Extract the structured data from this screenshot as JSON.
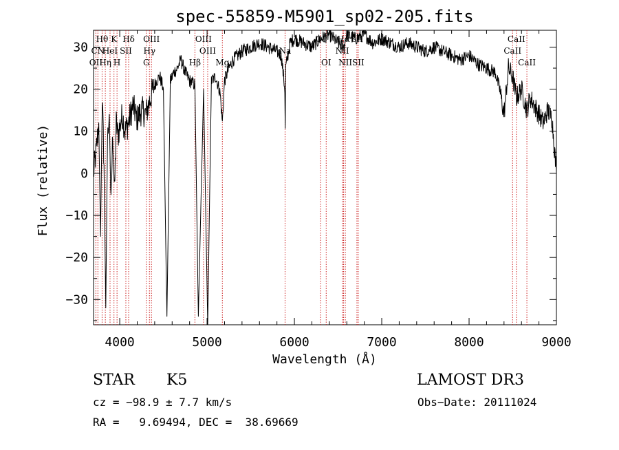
{
  "chart_data": {
    "type": "line",
    "title": "spec-55859-M5901_sp02-205.fits",
    "xlabel": "Wavelength (Å)",
    "ylabel": "Flux (relative)",
    "xlim": [
      3700,
      9000
    ],
    "ylim": [
      -36,
      34
    ],
    "xticks": [
      4000,
      5000,
      6000,
      7000,
      8000,
      9000
    ],
    "yticks": [
      -30,
      -20,
      -10,
      0,
      10,
      20,
      30
    ],
    "line_color": "#000000",
    "marker_color": "#cc2222",
    "series": [
      {
        "name": "flux",
        "x": [
          3700,
          3730,
          3760,
          3780,
          3800,
          3820,
          3840,
          3860,
          3880,
          3900,
          3920,
          3940,
          3960,
          3980,
          4000,
          4030,
          4060,
          4100,
          4150,
          4200,
          4250,
          4300,
          4340,
          4380,
          4420,
          4460,
          4500,
          4540,
          4580,
          4620,
          4660,
          4700,
          4750,
          4800,
          4861,
          4900,
          4960,
          5007,
          5050,
          5100,
          5150,
          5175,
          5200,
          5250,
          5300,
          5400,
          5500,
          5600,
          5700,
          5800,
          5850,
          5890,
          5895,
          5900,
          5950,
          6000,
          6100,
          6200,
          6300,
          6400,
          6500,
          6563,
          6600,
          6700,
          6800,
          6900,
          7000,
          7100,
          7200,
          7300,
          7400,
          7500,
          7600,
          7700,
          7800,
          7900,
          8000,
          8100,
          8200,
          8300,
          8350,
          8400,
          8450,
          8498,
          8542,
          8600,
          8662,
          8700,
          8750,
          8800,
          8850,
          8900,
          8950,
          9000
        ],
        "y": [
          0,
          5,
          12,
          -15,
          18,
          2,
          -32,
          8,
          14,
          -8,
          10,
          -5,
          12,
          9,
          11,
          14,
          10,
          12,
          16,
          13,
          15,
          14,
          17,
          20,
          22,
          23,
          20,
          -34,
          22,
          24,
          25,
          27,
          24,
          22,
          21,
          -34,
          20,
          -36,
          22,
          23,
          19,
          12,
          22,
          25,
          27,
          29,
          30,
          31,
          30,
          29,
          28,
          20,
          10,
          25,
          31,
          32,
          31,
          30,
          32,
          33,
          31,
          30,
          33,
          32,
          33,
          31,
          32,
          31,
          30,
          31,
          30,
          29,
          30,
          29,
          28,
          27,
          28,
          26,
          25,
          24,
          20,
          14,
          25,
          23,
          18,
          20,
          15,
          18,
          16,
          14,
          12,
          15,
          13,
          0
        ]
      }
    ],
    "annotations": [
      {
        "label": "Hθ",
        "x": 3798,
        "row": 1
      },
      {
        "label": "OII",
        "x": 3727,
        "row": 3
      },
      {
        "label": "Hη",
        "x": 3835,
        "row": 3
      },
      {
        "label": "CN",
        "x": 3750,
        "row": 2
      },
      {
        "label": "K",
        "x": 3934,
        "row": 1
      },
      {
        "label": "H",
        "x": 3969,
        "row": 3
      },
      {
        "label": "HeI",
        "x": 3889,
        "row": 2
      },
      {
        "label": "SII",
        "x": 4070,
        "row": 2
      },
      {
        "label": "Hδ",
        "x": 4102,
        "row": 1
      },
      {
        "label": "OIII",
        "x": 4363,
        "row": 1
      },
      {
        "label": "Hγ",
        "x": 4340,
        "row": 2
      },
      {
        "label": "G",
        "x": 4305,
        "row": 3
      },
      {
        "label": "OIII",
        "x": 4959,
        "row": 1
      },
      {
        "label": "OIII",
        "x": 5007,
        "row": 2
      },
      {
        "label": "Hβ",
        "x": 4861,
        "row": 3
      },
      {
        "label": "Mg",
        "x": 5175,
        "row": 3
      },
      {
        "label": "Na",
        "x": 5893,
        "row": 2
      },
      {
        "label": "OI",
        "x": 6300,
        "row": 1
      },
      {
        "label": "OI",
        "x": 6364,
        "row": 3
      },
      {
        "label": "Hα",
        "x": 6563,
        "row": 1
      },
      {
        "label": "NII",
        "x": 6548,
        "row": 2
      },
      {
        "label": "NII",
        "x": 6583,
        "row": 3
      },
      {
        "label": "SII",
        "x": 6716,
        "row": 1
      },
      {
        "label": "SII",
        "x": 6731,
        "row": 3
      },
      {
        "label": "CaII",
        "x": 8498,
        "row": 2
      },
      {
        "label": "CaII",
        "x": 8542,
        "row": 1
      },
      {
        "label": "CaII",
        "x": 8662,
        "row": 3
      }
    ]
  },
  "info": {
    "class": "STAR",
    "subclass": "K5",
    "survey": "LAMOST DR3",
    "cz": "cz = −98.9 ± 7.7 km/s",
    "obsdate": "Obs−Date: 20111024",
    "radec": "RA =   9.69494, DEC =  38.69669"
  }
}
